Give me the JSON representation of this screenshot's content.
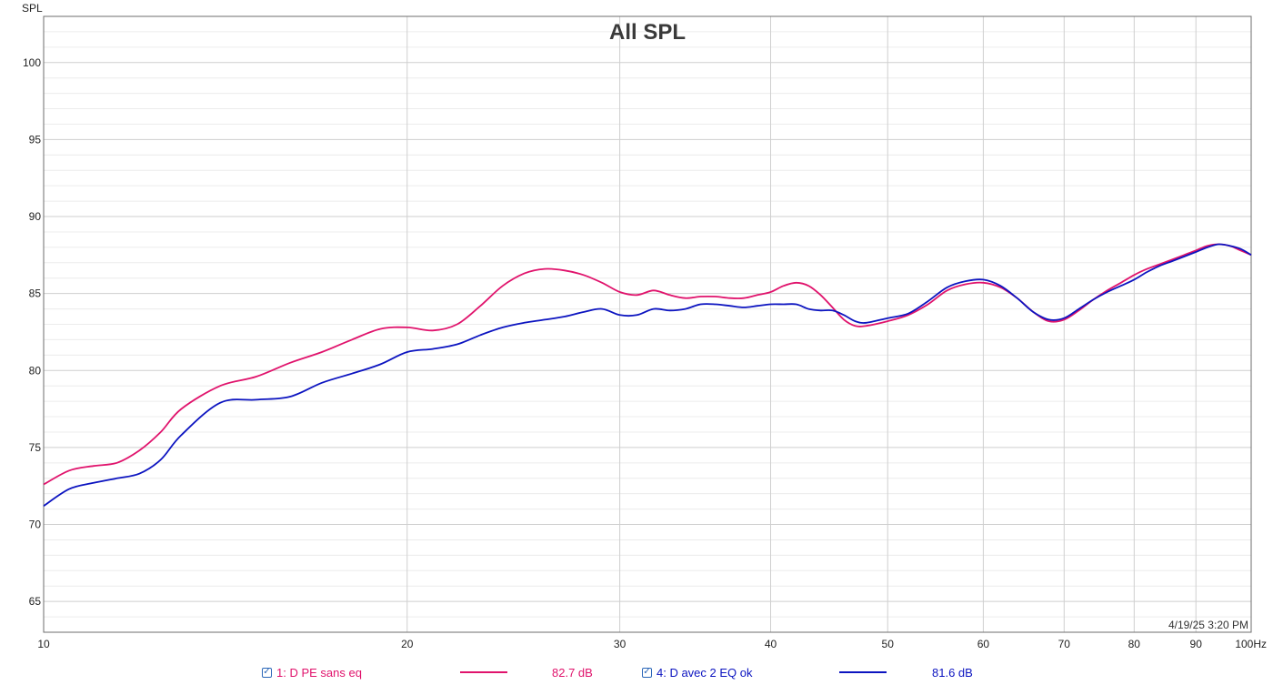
{
  "chart_data": {
    "type": "line",
    "title": "All SPL",
    "ylabel": "SPL",
    "xlabel": "",
    "x_scale": "log",
    "xlim": [
      10,
      100
    ],
    "ylim": [
      63,
      103
    ],
    "grid": true,
    "x_ticks": [
      {
        "value": 10,
        "label": "10"
      },
      {
        "value": 20,
        "label": "20"
      },
      {
        "value": 30,
        "label": "30"
      },
      {
        "value": 40,
        "label": "40"
      },
      {
        "value": 50,
        "label": "50"
      },
      {
        "value": 60,
        "label": "60"
      },
      {
        "value": 70,
        "label": "70"
      },
      {
        "value": 80,
        "label": "80"
      },
      {
        "value": 90,
        "label": "90"
      },
      {
        "value": 100,
        "label": "100Hz"
      }
    ],
    "y_ticks": [
      {
        "value": 65,
        "label": "65"
      },
      {
        "value": 70,
        "label": "70"
      },
      {
        "value": 75,
        "label": "75"
      },
      {
        "value": 80,
        "label": "80"
      },
      {
        "value": 85,
        "label": "85"
      },
      {
        "value": 90,
        "label": "90"
      },
      {
        "value": 95,
        "label": "95"
      },
      {
        "value": 100,
        "label": "100"
      }
    ],
    "series": [
      {
        "name": "1: D PE sans eq",
        "level": "82.7 dB",
        "color": "#e0136c",
        "x": [
          10,
          10.5,
          11,
          11.5,
          12,
          12.5,
          13,
          14,
          15,
          16,
          17,
          18,
          19,
          20,
          21,
          22,
          23,
          24,
          25,
          26,
          27,
          28,
          29,
          30,
          31,
          32,
          33,
          34,
          35,
          36,
          37,
          38,
          39,
          40,
          41,
          42,
          43,
          44,
          45,
          46,
          47,
          48,
          50,
          52,
          54,
          56,
          58,
          60,
          62,
          64,
          66,
          68,
          70,
          72,
          74,
          76,
          78,
          80,
          82,
          84,
          86,
          88,
          90,
          92,
          94,
          96,
          98,
          100
        ],
        "y": [
          72.6,
          73.5,
          73.8,
          74.0,
          74.8,
          76.0,
          77.5,
          79.0,
          79.6,
          80.5,
          81.2,
          82.0,
          82.7,
          82.8,
          82.6,
          83.0,
          84.2,
          85.5,
          86.3,
          86.6,
          86.5,
          86.2,
          85.7,
          85.1,
          84.9,
          85.2,
          84.9,
          84.7,
          84.8,
          84.8,
          84.7,
          84.7,
          84.9,
          85.1,
          85.5,
          85.7,
          85.5,
          84.9,
          84.1,
          83.3,
          82.9,
          82.9,
          83.2,
          83.6,
          84.3,
          85.2,
          85.6,
          85.7,
          85.4,
          84.7,
          83.8,
          83.2,
          83.3,
          83.9,
          84.6,
          85.2,
          85.7,
          86.2,
          86.6,
          86.9,
          87.2,
          87.5,
          87.8,
          88.1,
          88.2,
          88.1,
          87.8,
          87.5
        ]
      },
      {
        "name": "4: D avec 2 EQ ok",
        "level": "81.6 dB",
        "color": "#0c14c0",
        "x": [
          10,
          10.5,
          11,
          11.5,
          12,
          12.5,
          13,
          14,
          15,
          16,
          17,
          18,
          19,
          20,
          21,
          22,
          23,
          24,
          25,
          26,
          27,
          28,
          29,
          30,
          31,
          32,
          33,
          34,
          35,
          36,
          37,
          38,
          39,
          40,
          41,
          42,
          43,
          44,
          45,
          46,
          47,
          48,
          50,
          52,
          54,
          56,
          58,
          60,
          62,
          64,
          66,
          68,
          70,
          72,
          74,
          76,
          78,
          80,
          82,
          84,
          86,
          88,
          90,
          92,
          94,
          96,
          98,
          100
        ],
        "y": [
          71.2,
          72.3,
          72.7,
          73.0,
          73.3,
          74.2,
          75.8,
          77.9,
          78.1,
          78.3,
          79.2,
          79.8,
          80.4,
          81.2,
          81.4,
          81.7,
          82.3,
          82.8,
          83.1,
          83.3,
          83.5,
          83.8,
          84.0,
          83.6,
          83.6,
          84.0,
          83.9,
          84.0,
          84.3,
          84.3,
          84.2,
          84.1,
          84.2,
          84.3,
          84.3,
          84.3,
          84.0,
          83.9,
          83.9,
          83.6,
          83.2,
          83.1,
          83.4,
          83.7,
          84.5,
          85.4,
          85.8,
          85.9,
          85.5,
          84.7,
          83.8,
          83.3,
          83.4,
          84.0,
          84.6,
          85.1,
          85.5,
          85.9,
          86.4,
          86.8,
          87.1,
          87.4,
          87.7,
          88.0,
          88.2,
          88.1,
          87.9,
          87.5
        ]
      }
    ],
    "legend_placement": "bottom",
    "annotation": "4/19/25 3:20 PM"
  }
}
